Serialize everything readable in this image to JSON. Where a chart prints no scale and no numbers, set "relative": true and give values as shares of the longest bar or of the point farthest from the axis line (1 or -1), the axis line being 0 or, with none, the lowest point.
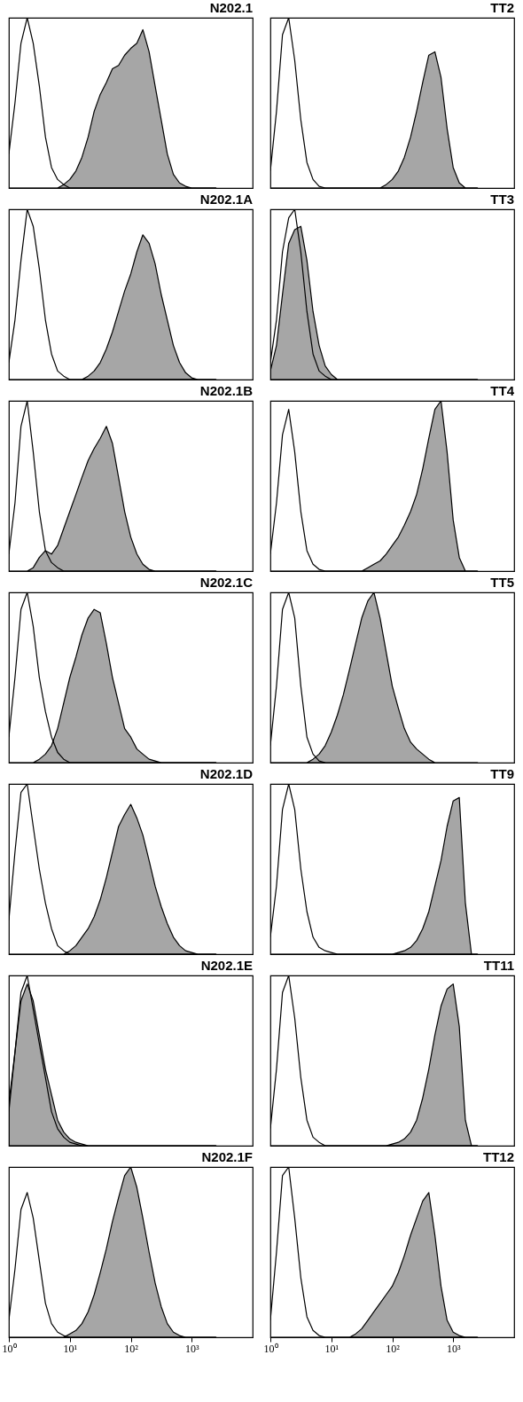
{
  "chart_data": [
    {
      "type": "area",
      "title": "N202.1",
      "relative": true,
      "log": "x",
      "xlim": [
        1,
        10000
      ],
      "tick_labels": false,
      "x": [
        1,
        1.26,
        1.58,
        2,
        2.51,
        3.16,
        3.98,
        5.01,
        6.31,
        7.94,
        10,
        12.6,
        15.8,
        20,
        25.1,
        31.6,
        39.8,
        50.1,
        63.1,
        79.4,
        100,
        126,
        158,
        200,
        251,
        316,
        398,
        501,
        631,
        794,
        1000,
        1259,
        1585,
        1995,
        2512
      ],
      "series": [
        {
          "type": "line",
          "color": "#000000",
          "values": [
            0.2,
            0.5,
            0.85,
            1,
            0.85,
            0.6,
            0.3,
            0.12,
            0.05,
            0.02,
            0,
            0,
            0,
            0,
            0,
            0,
            0,
            0,
            0,
            0,
            0,
            0,
            0,
            0,
            0,
            0,
            0,
            0,
            0,
            0,
            0,
            0,
            0,
            0,
            0
          ]
        },
        {
          "type": "area",
          "color": "#000000",
          "values": [
            0,
            0,
            0,
            0,
            0,
            0,
            0,
            0,
            0,
            0.02,
            0.05,
            0.1,
            0.18,
            0.3,
            0.45,
            0.55,
            0.62,
            0.7,
            0.72,
            0.78,
            0.82,
            0.85,
            0.93,
            0.8,
            0.6,
            0.4,
            0.2,
            0.08,
            0.03,
            0.01,
            0,
            0,
            0,
            0,
            0
          ]
        }
      ]
    },
    {
      "type": "area",
      "title": "TT2",
      "relative": true,
      "log": "x",
      "xlim": [
        1,
        10000
      ],
      "tick_labels": false,
      "x": [
        1,
        1.26,
        1.58,
        2,
        2.51,
        3.16,
        3.98,
        5.01,
        6.31,
        7.94,
        10,
        12.6,
        15.8,
        20,
        25.1,
        31.6,
        39.8,
        50.1,
        63.1,
        79.4,
        100,
        126,
        158,
        200,
        251,
        316,
        398,
        501,
        631,
        794,
        1000,
        1259,
        1585,
        1995,
        2512
      ],
      "series": [
        {
          "type": "line",
          "color": "#000000",
          "values": [
            0.1,
            0.45,
            0.9,
            1,
            0.75,
            0.4,
            0.15,
            0.05,
            0.01,
            0,
            0,
            0,
            0,
            0,
            0,
            0,
            0,
            0,
            0,
            0,
            0,
            0,
            0,
            0,
            0,
            0,
            0,
            0,
            0,
            0,
            0,
            0,
            0,
            0,
            0
          ]
        },
        {
          "type": "area",
          "color": "#000000",
          "values": [
            0,
            0,
            0,
            0,
            0,
            0,
            0,
            0,
            0,
            0,
            0,
            0,
            0,
            0,
            0,
            0,
            0,
            0,
            0,
            0.02,
            0.05,
            0.1,
            0.18,
            0.3,
            0.45,
            0.62,
            0.78,
            0.8,
            0.65,
            0.35,
            0.12,
            0.03,
            0,
            0,
            0
          ]
        }
      ]
    },
    {
      "type": "area",
      "title": "N202.1A",
      "relative": true,
      "log": "x",
      "xlim": [
        1,
        10000
      ],
      "tick_labels": false,
      "x": [
        1,
        1.26,
        1.58,
        2,
        2.51,
        3.16,
        3.98,
        5.01,
        6.31,
        7.94,
        10,
        12.6,
        15.8,
        20,
        25.1,
        31.6,
        39.8,
        50.1,
        63.1,
        79.4,
        100,
        126,
        158,
        200,
        251,
        316,
        398,
        501,
        631,
        794,
        1000,
        1259,
        1585,
        1995,
        2512
      ],
      "series": [
        {
          "type": "line",
          "color": "#000000",
          "values": [
            0.1,
            0.35,
            0.7,
            1,
            0.9,
            0.65,
            0.35,
            0.15,
            0.05,
            0.02,
            0,
            0,
            0,
            0,
            0,
            0,
            0,
            0,
            0,
            0,
            0,
            0,
            0,
            0,
            0,
            0,
            0,
            0,
            0,
            0,
            0,
            0,
            0,
            0,
            0
          ]
        },
        {
          "type": "area",
          "color": "#000000",
          "values": [
            0,
            0,
            0,
            0,
            0,
            0,
            0,
            0,
            0,
            0,
            0,
            0,
            0,
            0.02,
            0.05,
            0.1,
            0.18,
            0.28,
            0.4,
            0.52,
            0.62,
            0.75,
            0.85,
            0.8,
            0.68,
            0.5,
            0.35,
            0.2,
            0.1,
            0.04,
            0.01,
            0,
            0,
            0,
            0
          ]
        }
      ]
    },
    {
      "type": "area",
      "title": "TT3",
      "relative": true,
      "log": "x",
      "xlim": [
        1,
        10000
      ],
      "tick_labels": false,
      "x": [
        1,
        1.26,
        1.58,
        2,
        2.51,
        3.16,
        3.98,
        5.01,
        6.31,
        7.94,
        10,
        12.6,
        15.8,
        20,
        25.1,
        31.6,
        39.8,
        50.1,
        63.1,
        79.4,
        100,
        126,
        158,
        200,
        251,
        316,
        398,
        501,
        631,
        794,
        1000,
        1259,
        1585,
        1995,
        2512
      ],
      "series": [
        {
          "type": "line",
          "color": "#000000",
          "values": [
            0.1,
            0.35,
            0.75,
            0.95,
            1,
            0.75,
            0.4,
            0.15,
            0.05,
            0.02,
            0,
            0,
            0,
            0,
            0,
            0,
            0,
            0,
            0,
            0,
            0,
            0,
            0,
            0,
            0,
            0,
            0,
            0,
            0,
            0,
            0,
            0,
            0,
            0,
            0
          ]
        },
        {
          "type": "area",
          "color": "#000000",
          "values": [
            0.05,
            0.2,
            0.5,
            0.8,
            0.88,
            0.9,
            0.7,
            0.4,
            0.2,
            0.08,
            0.03,
            0,
            0,
            0,
            0,
            0,
            0,
            0,
            0,
            0,
            0,
            0,
            0,
            0,
            0,
            0,
            0,
            0,
            0,
            0,
            0,
            0,
            0,
            0,
            0
          ]
        }
      ]
    },
    {
      "type": "area",
      "title": "N202.1B",
      "relative": true,
      "log": "x",
      "xlim": [
        1,
        10000
      ],
      "tick_labels": false,
      "x": [
        1,
        1.26,
        1.58,
        2,
        2.51,
        3.16,
        3.98,
        5.01,
        6.31,
        7.94,
        10,
        12.6,
        15.8,
        20,
        25.1,
        31.6,
        39.8,
        50.1,
        63.1,
        79.4,
        100,
        126,
        158,
        200,
        251,
        316,
        398,
        501,
        631,
        794,
        1000,
        1259,
        1585,
        1995,
        2512
      ],
      "series": [
        {
          "type": "line",
          "color": "#000000",
          "values": [
            0.1,
            0.4,
            0.85,
            1,
            0.7,
            0.35,
            0.12,
            0.05,
            0.02,
            0,
            0,
            0,
            0,
            0,
            0,
            0,
            0,
            0,
            0,
            0,
            0,
            0,
            0,
            0,
            0,
            0,
            0,
            0,
            0,
            0,
            0,
            0,
            0,
            0,
            0
          ]
        },
        {
          "type": "area",
          "color": "#000000",
          "values": [
            0,
            0,
            0,
            0,
            0.02,
            0.08,
            0.12,
            0.1,
            0.15,
            0.25,
            0.35,
            0.45,
            0.55,
            0.65,
            0.72,
            0.78,
            0.85,
            0.75,
            0.55,
            0.35,
            0.2,
            0.1,
            0.04,
            0.01,
            0,
            0,
            0,
            0,
            0,
            0,
            0,
            0,
            0,
            0,
            0
          ]
        }
      ]
    },
    {
      "type": "area",
      "title": "TT4",
      "relative": true,
      "log": "x",
      "xlim": [
        1,
        10000
      ],
      "tick_labels": false,
      "x": [
        1,
        1.26,
        1.58,
        2,
        2.51,
        3.16,
        3.98,
        5.01,
        6.31,
        7.94,
        10,
        12.6,
        15.8,
        20,
        25.1,
        31.6,
        39.8,
        50.1,
        63.1,
        79.4,
        100,
        126,
        158,
        200,
        251,
        316,
        398,
        501,
        631,
        794,
        1000,
        1259,
        1585,
        1995,
        2512
      ],
      "series": [
        {
          "type": "line",
          "color": "#000000",
          "values": [
            0.1,
            0.4,
            0.8,
            0.95,
            0.7,
            0.35,
            0.12,
            0.04,
            0.01,
            0,
            0,
            0,
            0,
            0,
            0,
            0,
            0,
            0,
            0,
            0,
            0,
            0,
            0,
            0,
            0,
            0,
            0,
            0,
            0,
            0,
            0,
            0,
            0,
            0,
            0
          ]
        },
        {
          "type": "area",
          "color": "#000000",
          "values": [
            0,
            0,
            0,
            0,
            0,
            0,
            0,
            0,
            0,
            0,
            0,
            0,
            0,
            0,
            0,
            0,
            0.02,
            0.04,
            0.06,
            0.1,
            0.15,
            0.2,
            0.27,
            0.35,
            0.45,
            0.6,
            0.78,
            0.95,
            1,
            0.7,
            0.3,
            0.08,
            0,
            0,
            0
          ]
        }
      ]
    },
    {
      "type": "area",
      "title": "N202.1C",
      "relative": true,
      "log": "x",
      "xlim": [
        1,
        10000
      ],
      "tick_labels": false,
      "x": [
        1,
        1.26,
        1.58,
        2,
        2.51,
        3.16,
        3.98,
        5.01,
        6.31,
        7.94,
        10,
        12.6,
        15.8,
        20,
        25.1,
        31.6,
        39.8,
        50.1,
        63.1,
        79.4,
        100,
        126,
        158,
        200,
        251,
        316,
        398,
        501,
        631,
        794,
        1000,
        1259,
        1585,
        1995,
        2512
      ],
      "series": [
        {
          "type": "line",
          "color": "#000000",
          "values": [
            0.15,
            0.5,
            0.9,
            1,
            0.8,
            0.5,
            0.3,
            0.15,
            0.06,
            0.02,
            0,
            0,
            0,
            0,
            0,
            0,
            0,
            0,
            0,
            0,
            0,
            0,
            0,
            0,
            0,
            0,
            0,
            0,
            0,
            0,
            0,
            0,
            0,
            0,
            0
          ]
        },
        {
          "type": "area",
          "color": "#000000",
          "values": [
            0,
            0,
            0,
            0,
            0,
            0.02,
            0.05,
            0.1,
            0.2,
            0.35,
            0.5,
            0.62,
            0.75,
            0.85,
            0.9,
            0.88,
            0.7,
            0.5,
            0.35,
            0.2,
            0.15,
            0.08,
            0.05,
            0.02,
            0.01,
            0,
            0,
            0,
            0,
            0,
            0,
            0,
            0,
            0,
            0
          ]
        }
      ]
    },
    {
      "type": "area",
      "title": "TT5",
      "relative": true,
      "log": "x",
      "xlim": [
        1,
        10000
      ],
      "tick_labels": false,
      "x": [
        1,
        1.26,
        1.58,
        2,
        2.51,
        3.16,
        3.98,
        5.01,
        6.31,
        7.94,
        10,
        12.6,
        15.8,
        20,
        25.1,
        31.6,
        39.8,
        50.1,
        63.1,
        79.4,
        100,
        126,
        158,
        200,
        251,
        316,
        398,
        501,
        631,
        794,
        1000,
        1259,
        1585,
        1995,
        2512
      ],
      "series": [
        {
          "type": "line",
          "color": "#000000",
          "values": [
            0.1,
            0.45,
            0.9,
            1,
            0.85,
            0.45,
            0.15,
            0.05,
            0.01,
            0,
            null,
            null,
            null,
            null,
            null,
            null,
            null,
            null,
            null,
            null,
            null,
            null,
            null,
            null,
            null,
            null,
            null,
            null,
            null,
            null,
            null,
            null,
            null,
            null,
            null
          ]
        },
        {
          "type": "area",
          "color": "#000000",
          "values": [
            0,
            0,
            0,
            0,
            0,
            0,
            0,
            0.02,
            0.05,
            0.1,
            0.18,
            0.28,
            0.4,
            0.55,
            0.7,
            0.85,
            0.95,
            1,
            0.85,
            0.65,
            0.45,
            0.32,
            0.2,
            0.12,
            0.08,
            0.05,
            0.02,
            0,
            0,
            0,
            0,
            0,
            0,
            0,
            0
          ]
        }
      ]
    },
    {
      "type": "area",
      "title": "N202.1D",
      "relative": true,
      "log": "x",
      "xlim": [
        1,
        10000
      ],
      "tick_labels": false,
      "x": [
        1,
        1.26,
        1.58,
        2,
        2.51,
        3.16,
        3.98,
        5.01,
        6.31,
        7.94,
        10,
        12.6,
        15.8,
        20,
        25.1,
        31.6,
        39.8,
        50.1,
        63.1,
        79.4,
        100,
        126,
        158,
        200,
        251,
        316,
        398,
        501,
        631,
        794,
        1000,
        1259,
        1585,
        1995,
        2512
      ],
      "series": [
        {
          "type": "line",
          "color": "#000000",
          "values": [
            0.2,
            0.6,
            0.95,
            1,
            0.75,
            0.5,
            0.3,
            0.15,
            0.05,
            0.02,
            0,
            0,
            0,
            0,
            0,
            0,
            0,
            0,
            0,
            0,
            0,
            0,
            0,
            0,
            0,
            0,
            0,
            0,
            0,
            0,
            0,
            0,
            0,
            0,
            0
          ]
        },
        {
          "type": "area",
          "color": "#000000",
          "values": [
            0,
            0,
            0,
            0,
            0,
            0,
            0,
            0,
            0,
            0,
            0.02,
            0.05,
            0.1,
            0.15,
            0.22,
            0.32,
            0.45,
            0.6,
            0.75,
            0.82,
            0.88,
            0.8,
            0.7,
            0.55,
            0.4,
            0.28,
            0.18,
            0.1,
            0.05,
            0.02,
            0.01,
            0,
            0,
            0,
            0
          ]
        }
      ]
    },
    {
      "type": "area",
      "title": "TT9",
      "relative": true,
      "log": "x",
      "xlim": [
        1,
        10000
      ],
      "tick_labels": false,
      "x": [
        1,
        1.26,
        1.58,
        2,
        2.51,
        3.16,
        3.98,
        5.01,
        6.31,
        7.94,
        10,
        12.6,
        15.8,
        20,
        25.1,
        31.6,
        39.8,
        50.1,
        63.1,
        79.4,
        100,
        126,
        158,
        200,
        251,
        316,
        398,
        501,
        631,
        794,
        1000,
        1259,
        1585,
        1995,
        2512
      ],
      "series": [
        {
          "type": "line",
          "color": "#000000",
          "values": [
            0.1,
            0.4,
            0.85,
            1,
            0.85,
            0.5,
            0.25,
            0.1,
            0.04,
            0.02,
            0.01,
            0,
            0,
            0,
            0,
            0,
            0,
            0,
            0,
            0,
            0,
            0,
            0,
            0,
            0,
            0,
            0,
            0,
            0,
            0,
            0,
            0,
            0,
            0,
            0
          ]
        },
        {
          "type": "area",
          "color": "#000000",
          "values": [
            0,
            0,
            0,
            0,
            0,
            0,
            0,
            0,
            0,
            0,
            0,
            0,
            0,
            0,
            0,
            0,
            0,
            0,
            0,
            0,
            0,
            0.01,
            0.02,
            0.04,
            0.08,
            0.15,
            0.25,
            0.4,
            0.55,
            0.75,
            0.9,
            0.92,
            0.3,
            0,
            0
          ]
        }
      ]
    },
    {
      "type": "area",
      "title": "N202.1E",
      "relative": true,
      "log": "x",
      "xlim": [
        1,
        10000
      ],
      "tick_labels": false,
      "x": [
        1,
        1.26,
        1.58,
        2,
        2.51,
        3.16,
        3.98,
        5.01,
        6.31,
        7.94,
        10,
        12.6,
        15.8,
        20,
        25.1,
        31.6,
        39.8,
        50.1,
        63.1,
        79.4,
        100,
        126,
        158,
        200,
        251,
        316,
        398,
        501,
        631,
        794,
        1000,
        1259,
        1585,
        1995,
        2512
      ],
      "series": [
        {
          "type": "line",
          "color": "#000000",
          "values": [
            0.2,
            0.55,
            0.9,
            1,
            0.8,
            0.6,
            0.4,
            0.2,
            0.1,
            0.05,
            0.02,
            0.01,
            0,
            0,
            0,
            0,
            0,
            0,
            0,
            0,
            0,
            0,
            0,
            0,
            0,
            0,
            0,
            0,
            0,
            0,
            0,
            0,
            0,
            0,
            0
          ]
        },
        {
          "type": "area",
          "color": "#000000",
          "values": [
            0.25,
            0.55,
            0.85,
            0.95,
            0.85,
            0.65,
            0.45,
            0.3,
            0.15,
            0.08,
            0.04,
            0.02,
            0.01,
            0,
            0,
            0,
            0,
            0,
            0,
            0,
            0,
            0,
            0,
            0,
            0,
            0,
            0,
            0,
            0,
            0,
            0,
            0,
            0,
            0,
            0
          ]
        }
      ]
    },
    {
      "type": "area",
      "title": "TT11",
      "relative": true,
      "log": "x",
      "xlim": [
        1,
        10000
      ],
      "tick_labels": false,
      "x": [
        1,
        1.26,
        1.58,
        2,
        2.51,
        3.16,
        3.98,
        5.01,
        6.31,
        7.94,
        10,
        12.6,
        15.8,
        20,
        25.1,
        31.6,
        39.8,
        50.1,
        63.1,
        79.4,
        100,
        126,
        158,
        200,
        251,
        316,
        398,
        501,
        631,
        794,
        1000,
        1259,
        1585,
        1995,
        2512
      ],
      "series": [
        {
          "type": "line",
          "color": "#000000",
          "values": [
            0.1,
            0.45,
            0.9,
            1,
            0.75,
            0.4,
            0.15,
            0.05,
            0.02,
            0,
            0,
            0,
            0,
            0,
            0,
            0,
            0,
            0,
            0,
            0,
            0,
            0,
            0,
            0,
            0,
            0,
            0,
            0,
            0,
            0,
            0,
            0,
            0,
            0,
            0
          ]
        },
        {
          "type": "area",
          "color": "#000000",
          "values": [
            0,
            0,
            0,
            0,
            0,
            0,
            0,
            0,
            0,
            0,
            0,
            0,
            0,
            0,
            0,
            0,
            0,
            0,
            0,
            0,
            0.01,
            0.02,
            0.04,
            0.08,
            0.15,
            0.28,
            0.45,
            0.65,
            0.82,
            0.92,
            0.95,
            0.7,
            0.15,
            0,
            0
          ]
        }
      ]
    },
    {
      "type": "area",
      "title": "N202.1F",
      "relative": true,
      "log": "x",
      "xlim": [
        1,
        10000
      ],
      "xticks": [
        {
          "value": 1,
          "label": "10⁰"
        },
        {
          "value": 10,
          "label": "10¹"
        },
        {
          "value": 100,
          "label": "10²"
        },
        {
          "value": 1000,
          "label": "10³"
        }
      ],
      "tick_labels": "x",
      "x": [
        1,
        1.26,
        1.58,
        2,
        2.51,
        3.16,
        3.98,
        5.01,
        6.31,
        7.94,
        10,
        12.6,
        15.8,
        20,
        25.1,
        31.6,
        39.8,
        50.1,
        63.1,
        79.4,
        100,
        126,
        158,
        200,
        251,
        316,
        398,
        501,
        631,
        794,
        1000,
        1259,
        1585,
        1995,
        2512
      ],
      "series": [
        {
          "type": "line",
          "color": "#000000",
          "values": [
            0.1,
            0.4,
            0.75,
            0.85,
            0.7,
            0.45,
            0.2,
            0.08,
            0.03,
            0.01,
            0,
            0,
            0,
            0,
            0,
            0,
            0,
            0,
            0,
            0,
            0,
            0,
            0,
            0,
            0,
            0,
            0,
            0,
            0,
            0,
            0,
            0,
            0,
            0,
            0
          ]
        },
        {
          "type": "area",
          "color": "#000000",
          "values": [
            0,
            0,
            0,
            0,
            0,
            0,
            0,
            0,
            0,
            0,
            0.02,
            0.04,
            0.08,
            0.15,
            0.25,
            0.38,
            0.52,
            0.68,
            0.82,
            0.95,
            1,
            0.88,
            0.7,
            0.5,
            0.32,
            0.18,
            0.08,
            0.03,
            0.01,
            0,
            0,
            0,
            0,
            0,
            0
          ]
        }
      ]
    },
    {
      "type": "area",
      "title": "TT12",
      "relative": true,
      "log": "x",
      "xlim": [
        1,
        10000
      ],
      "xticks": [
        {
          "value": 1,
          "label": "10⁰"
        },
        {
          "value": 10,
          "label": "10¹"
        },
        {
          "value": 100,
          "label": "10²"
        },
        {
          "value": 1000,
          "label": "10³"
        }
      ],
      "tick_labels": "x",
      "x": [
        1,
        1.26,
        1.58,
        2,
        2.51,
        3.16,
        3.98,
        5.01,
        6.31,
        7.94,
        10,
        12.6,
        15.8,
        20,
        25.1,
        31.6,
        39.8,
        50.1,
        63.1,
        79.4,
        100,
        126,
        158,
        200,
        251,
        316,
        398,
        501,
        631,
        794,
        1000,
        1259,
        1585,
        1995,
        2512
      ],
      "series": [
        {
          "type": "line",
          "color": "#000000",
          "values": [
            0.1,
            0.5,
            0.95,
            1,
            0.7,
            0.35,
            0.12,
            0.04,
            0.01,
            0,
            0,
            0,
            0,
            0,
            0,
            0,
            0,
            0,
            0,
            0,
            0,
            0,
            0,
            0,
            0,
            0,
            0,
            0,
            0,
            0,
            0,
            0,
            0,
            0,
            0
          ]
        },
        {
          "type": "area",
          "color": "#000000",
          "values": [
            0,
            0,
            0,
            0,
            0,
            0,
            0,
            0,
            0,
            0,
            0,
            0,
            0,
            0,
            0.02,
            0.05,
            0.1,
            0.15,
            0.2,
            0.25,
            0.3,
            0.38,
            0.48,
            0.6,
            0.7,
            0.8,
            0.85,
            0.6,
            0.3,
            0.1,
            0.03,
            0.01,
            0,
            0,
            0
          ]
        }
      ]
    }
  ]
}
